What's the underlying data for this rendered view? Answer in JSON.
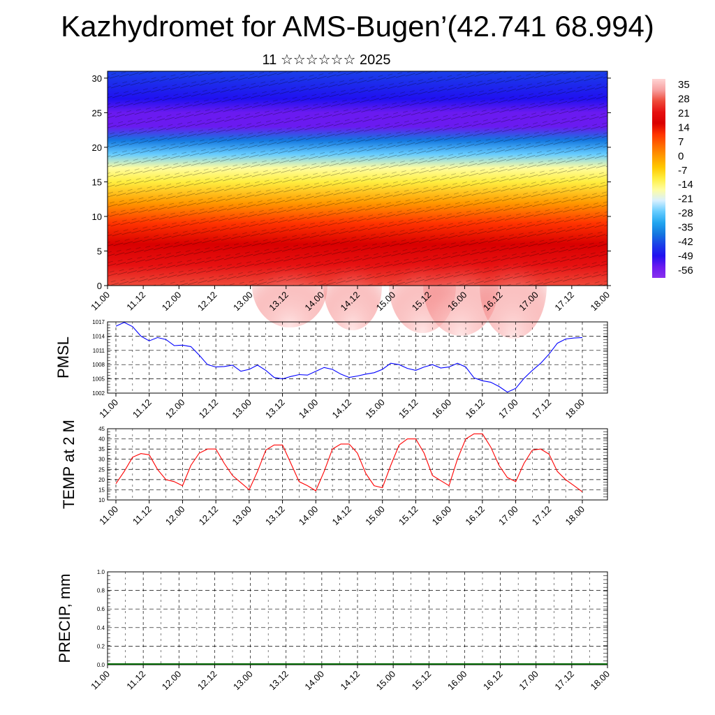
{
  "header": {
    "title": "Kazhydromet for AMS-Bugen’(42.741 68.994)",
    "subtitle": "11 ☆☆☆☆☆☆ 2025"
  },
  "colors": {
    "pmsl_line": "#0000ff",
    "temp_line": "#ff0000",
    "precip_line": "#006400",
    "grid": "#000000"
  },
  "chart_data": [
    {
      "type": "heatmap",
      "name_hint": "wind-temperature cross-section",
      "x_tick_labels": [
        "11.00",
        "11.12",
        "12.00",
        "12.12",
        "13.00",
        "13.12",
        "14.00",
        "14.12",
        "15.00",
        "15.12",
        "16.00",
        "16.12",
        "17.00",
        "17.12",
        "18.00"
      ],
      "y_ticks": [
        0,
        5,
        10,
        15,
        20,
        25,
        30
      ],
      "ylim": [
        0,
        31
      ],
      "colorbar_labels": [
        "35",
        "28",
        "21",
        "14",
        "7",
        "0",
        "-7",
        "-14",
        "-21",
        "-28",
        "-35",
        "-42",
        "-49",
        "-56"
      ],
      "colorbar_colors": [
        "#ffd4d4",
        "#f7a0a0",
        "#ee4a3a",
        "#e61010",
        "#d90000",
        "#ff3300",
        "#ff6a00",
        "#ff9a00",
        "#ffc800",
        "#ffee40",
        "#fffda0",
        "#d8f0ff",
        "#66ccff",
        "#22a6f0",
        "#1478e0",
        "#1a40e8",
        "#2010f0",
        "#6a1af0",
        "#8a30ee"
      ],
      "band_temps": [
        {
          "h": 0,
          "t": 28
        },
        {
          "h": 3,
          "t": 24
        },
        {
          "h": 6,
          "t": 18
        },
        {
          "h": 9,
          "t": 10
        },
        {
          "h": 12,
          "t": 0
        },
        {
          "h": 15,
          "t": -10
        },
        {
          "h": 17,
          "t": -18
        },
        {
          "h": 19,
          "t": -30
        },
        {
          "h": 21,
          "t": -40
        },
        {
          "h": 23,
          "t": -52
        },
        {
          "h": 25,
          "t": -56
        },
        {
          "h": 27,
          "t": -50
        },
        {
          "h": 31,
          "t": -45
        }
      ]
    },
    {
      "type": "line",
      "ylabel": "PMSL",
      "y_ticks": [
        1002,
        1005,
        1008,
        1011,
        1014,
        1017
      ],
      "ylim": [
        1002,
        1017
      ],
      "x_tick_labels": [
        "11.00",
        "11.12",
        "12.00",
        "12.12",
        "13.00",
        "13.12",
        "14.00",
        "14.12",
        "15.00",
        "15.12",
        "16.00",
        "16.12",
        "17.00",
        "17.12",
        "18.00"
      ],
      "x_step_hours": 3,
      "values": [
        1016.1,
        1016.9,
        1016.0,
        1014.0,
        1013.0,
        1013.7,
        1013.3,
        1012.0,
        1012.1,
        1011.8,
        1010.0,
        1008.0,
        1007.5,
        1007.6,
        1007.9,
        1006.6,
        1007.0,
        1007.9,
        1006.8,
        1005.3,
        1005.0,
        1005.5,
        1005.9,
        1005.8,
        1006.6,
        1007.4,
        1007.0,
        1006.0,
        1005.3,
        1005.6,
        1006.0,
        1006.3,
        1007.0,
        1008.3,
        1008.0,
        1007.2,
        1006.8,
        1007.5,
        1008.0,
        1007.3,
        1007.5,
        1008.3,
        1007.5,
        1005.2,
        1004.6,
        1004.3,
        1003.4,
        1002.2,
        1003.0,
        1005.1,
        1006.8,
        1008.3,
        1010.2,
        1012.5,
        1013.4,
        1013.6,
        1013.7
      ]
    },
    {
      "type": "line",
      "ylabel": "TEMP at 2 M",
      "y_ticks": [
        10,
        15,
        20,
        25,
        30,
        35,
        40,
        45
      ],
      "ylim": [
        10,
        45
      ],
      "x_tick_labels": [
        "11.00",
        "11.12",
        "12.00",
        "12.12",
        "13.00",
        "13.12",
        "14.00",
        "14.12",
        "15.00",
        "15.12",
        "16.00",
        "16.12",
        "17.00",
        "17.12",
        "18.00"
      ],
      "x_step_hours": 3,
      "values": [
        18,
        24,
        31,
        32.8,
        32.2,
        25,
        20,
        19,
        17,
        27,
        33,
        35,
        35,
        28,
        22,
        18.5,
        15,
        24,
        34.5,
        37,
        37,
        28,
        19,
        17,
        14.5,
        24,
        35,
        37.5,
        37.5,
        33,
        23,
        17,
        16,
        27,
        37,
        40,
        40,
        33,
        22,
        19.5,
        17,
        30,
        40,
        42.5,
        42.5,
        36,
        27,
        21,
        19,
        28,
        34.5,
        35,
        32.5,
        24,
        20,
        17,
        14
      ]
    },
    {
      "type": "line",
      "ylabel": "PRECIP, mm",
      "y_ticks": [
        "0.0",
        "0.2",
        "0.4",
        "0.6",
        "0.8",
        "1.0"
      ],
      "ylim": [
        0,
        1
      ],
      "x_tick_labels": [
        "11.00",
        "11.12",
        "12.00",
        "12.12",
        "13.00",
        "13.12",
        "14.00",
        "14.12",
        "15.00",
        "15.12",
        "16.00",
        "16.12",
        "17.00",
        "17.12",
        "18.00"
      ],
      "values": []
    }
  ]
}
